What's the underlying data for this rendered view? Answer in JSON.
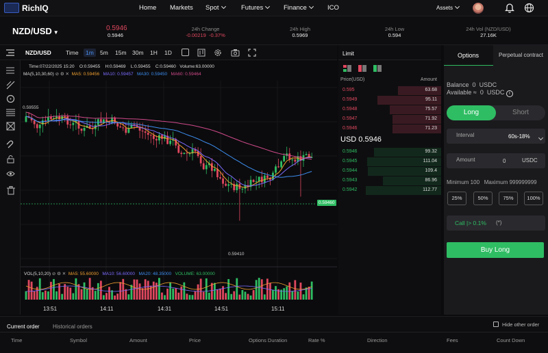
{
  "app": {
    "name": "RichIQ"
  },
  "nav": {
    "items": [
      "Home",
      "Markets",
      "Spot",
      "Futures",
      "Finance",
      "ICO"
    ],
    "assets": "Assets"
  },
  "ticker": {
    "pair": "NZD/USD",
    "price": "0.5946",
    "price_sub": "0.5946",
    "change_label": "24h Change",
    "change_value": "-0.00219",
    "change_pct": "-0.37%",
    "high_label": "24h High",
    "high_value": "0.5969",
    "low_label": "24h Low",
    "low_value": "0.594",
    "vol_label": "24h Vol (NZD/USD)",
    "vol_value": "27.16K"
  },
  "chart_toolbar": {
    "pair": "NZD/USD",
    "time_label": "Time",
    "intervals": [
      "1m",
      "5m",
      "15m",
      "30m",
      "1H",
      "1D"
    ],
    "selected": "1m"
  },
  "chart": {
    "ohlc_line": [
      "Time:07/22/2025 15:20",
      "O:0.59455",
      "H:0.59469",
      "L:0.59455",
      "C:0.59460",
      "Volume:63.00000"
    ],
    "ma_label": "MA(5,10,30,60)",
    "ma": [
      {
        "label": "MA5: 0.59456",
        "color": "#f0a030"
      },
      {
        "label": "MA10: 0.59457",
        "color": "#7b6cff"
      },
      {
        "label": "MA30: 0.59450",
        "color": "#3d8ef0"
      },
      {
        "label": "MA60: 0.59464",
        "color": "#d04a8a"
      }
    ],
    "high_marker": "0.59555",
    "low_marker": "0.59410",
    "last_price_tag": "0.59460",
    "vol_label": "VOL(5,10,20)",
    "vol_ma": [
      {
        "label": "MA5: 55.60000",
        "color": "#f0a030"
      },
      {
        "label": "MA10: 56.60000",
        "color": "#7b6cff"
      },
      {
        "label": "MA20: 48.35000",
        "color": "#3d8ef0"
      },
      {
        "label": "VOLUME: 63.00000",
        "color": "#2fbd63"
      }
    ],
    "time_ticks": [
      "13:51",
      "14:11",
      "14:31",
      "14:51",
      "15:11"
    ]
  },
  "order_book": {
    "tab": "Limit",
    "col_price": "Price(USD)",
    "col_amount": "Amount",
    "asks": [
      {
        "price": "0.595",
        "amount": "63.68",
        "depth": 0.42
      },
      {
        "price": "0.5949",
        "amount": "95.11",
        "depth": 0.62
      },
      {
        "price": "0.5948",
        "amount": "75.57",
        "depth": 0.5
      },
      {
        "price": "0.5947",
        "amount": "71.92",
        "depth": 0.47
      },
      {
        "price": "0.5946",
        "amount": "71.23",
        "depth": 0.47
      }
    ],
    "mid_price": "USD 0.5946",
    "bids": [
      {
        "price": "0.5946",
        "amount": "99.32",
        "depth": 0.65
      },
      {
        "price": "0.5945",
        "amount": "111.04",
        "depth": 0.72
      },
      {
        "price": "0.5944",
        "amount": "109.4",
        "depth": 0.71
      },
      {
        "price": "0.5943",
        "amount": "86.96",
        "depth": 0.57
      },
      {
        "price": "0.5942",
        "amount": "112.77",
        "depth": 0.73
      }
    ]
  },
  "trade_panel": {
    "tab_options": "Options",
    "tab_perpetual": "Perpetual contract",
    "balance_label": "Balance",
    "balance_value": "0",
    "balance_unit": "USDC",
    "available_label": "Available ≈",
    "available_value": "0",
    "available_unit": "USDC",
    "long_label": "Long",
    "short_label": "Short",
    "interval_label": "Interval",
    "interval_value": "60s-18%",
    "amount_label": "Amount",
    "amount_value": "0",
    "amount_unit": "USDC",
    "min_label": "Minimum 100",
    "max_label": "Maximum 999999999",
    "percents": [
      "25%",
      "50%",
      "75%",
      "100%"
    ],
    "call_text": "Call |> 0.1%",
    "call_suffix": "(*)",
    "buy_label": "Buy Long",
    "colors": {
      "green": "#2fbd63",
      "red": "#e0485f"
    }
  },
  "orders": {
    "tabs": [
      "Current order",
      "Historical orders"
    ],
    "hide_label": "Hide other order",
    "columns": [
      "Time",
      "Symbol",
      "Amount",
      "Price",
      "Options Duration",
      "Rate %",
      "Direction",
      "Fees",
      "Count Down"
    ]
  }
}
